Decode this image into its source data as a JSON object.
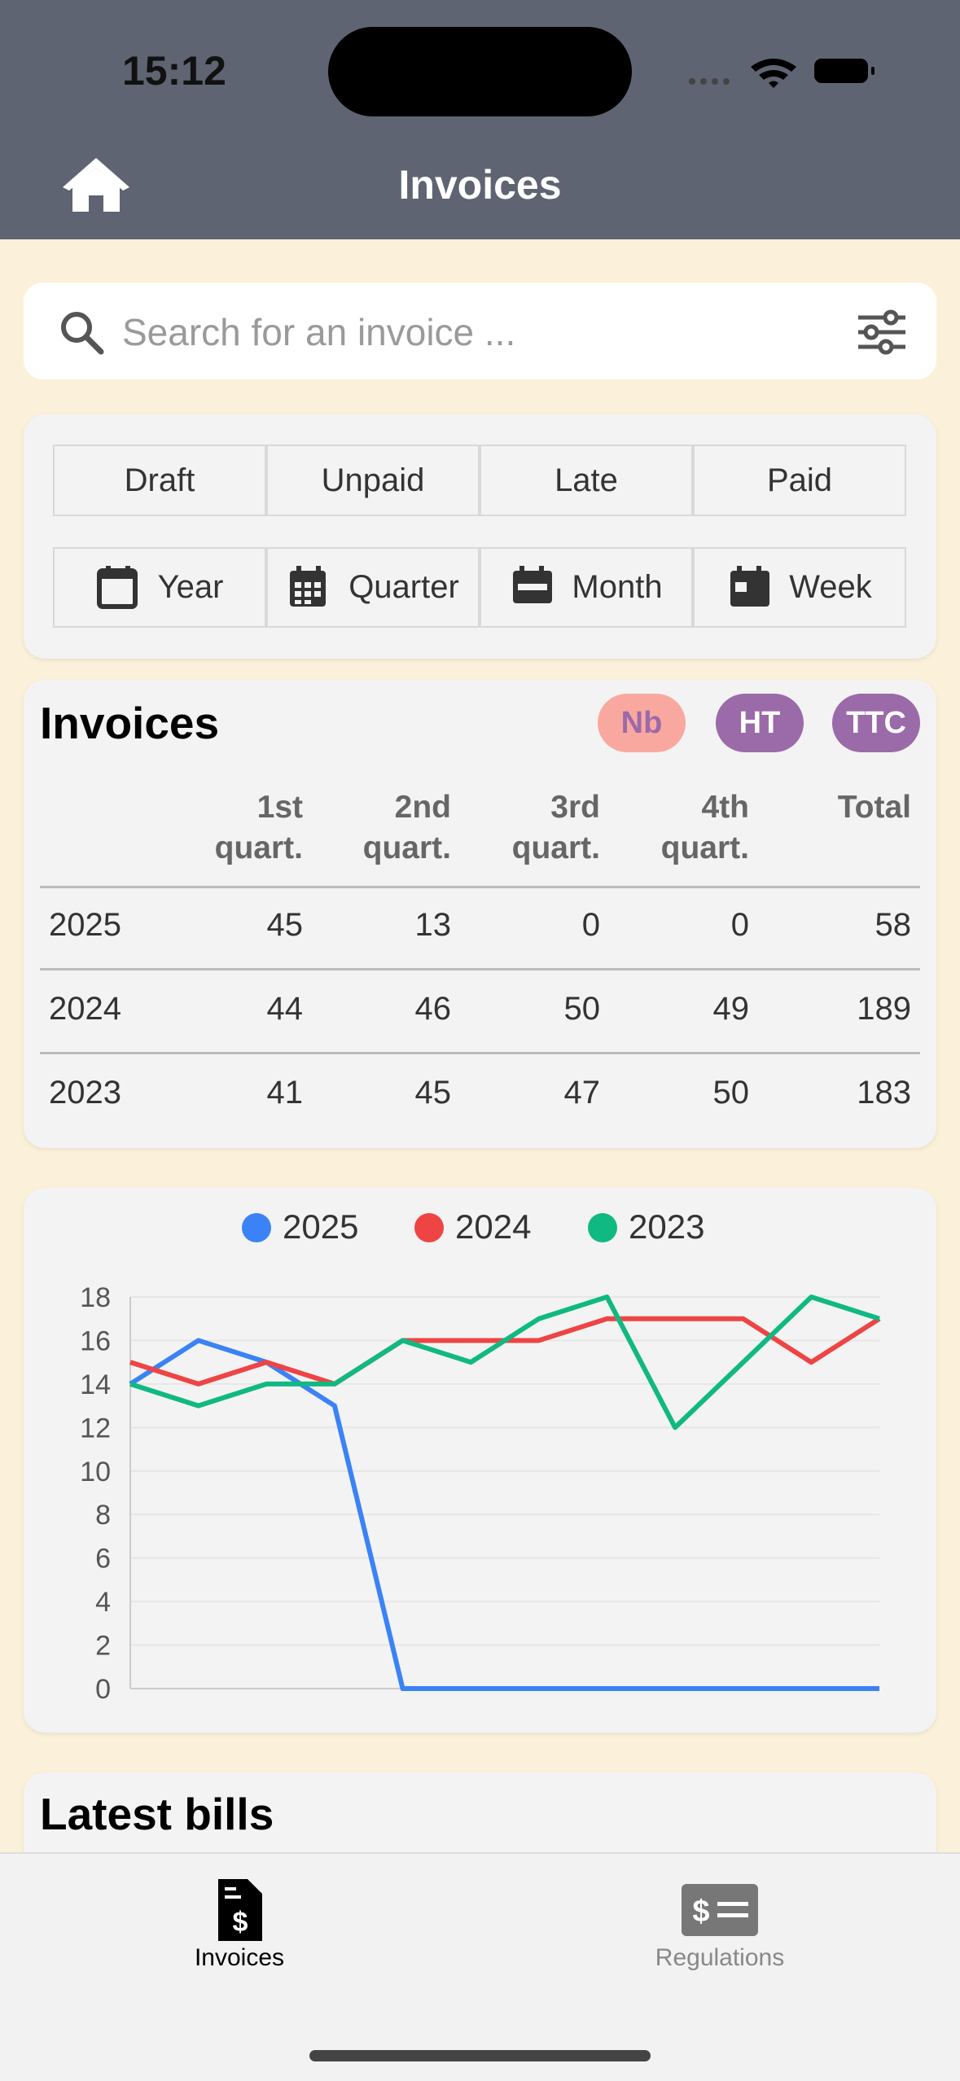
{
  "status_bar": {
    "time": "15:12"
  },
  "header": {
    "title": "Invoices"
  },
  "search": {
    "placeholder": "Search for an invoice ..."
  },
  "status_filters": [
    "Draft",
    "Unpaid",
    "Late",
    "Paid"
  ],
  "period_filters": [
    "Year",
    "Quarter",
    "Month",
    "Week"
  ],
  "invoices_card": {
    "title": "Invoices",
    "toggles": [
      "Nb",
      "HT",
      "TTC"
    ],
    "table": {
      "header": [
        "1st quart.",
        "2nd quart.",
        "3rd quart.",
        "4th quart.",
        "Total"
      ],
      "rows": [
        [
          "2025",
          45,
          13,
          0,
          0,
          58
        ],
        [
          "2024",
          44,
          46,
          50,
          49,
          189
        ],
        [
          "2023",
          41,
          45,
          47,
          50,
          183
        ]
      ]
    }
  },
  "chart_data": {
    "type": "line",
    "categories": [
      null,
      null,
      null,
      null,
      null,
      null,
      null,
      null,
      null,
      null,
      null,
      null
    ],
    "series": [
      {
        "name": "2025",
        "color": "#3b82f6",
        "values": [
          14,
          16,
          15,
          13,
          0,
          0,
          0,
          0,
          0,
          0,
          0,
          0
        ]
      },
      {
        "name": "2024",
        "color": "#ef4444",
        "values": [
          15,
          14,
          15,
          14,
          16,
          16,
          16,
          17,
          17,
          17,
          15,
          17
        ]
      },
      {
        "name": "2023",
        "color": "#10b981",
        "values": [
          14,
          13,
          14,
          14,
          16,
          15,
          17,
          18,
          12,
          15,
          18,
          17
        ]
      }
    ],
    "ylim": [
      0,
      18
    ],
    "yticks": [
      0,
      2,
      4,
      6,
      8,
      10,
      12,
      14,
      16,
      18
    ],
    "grid": true
  },
  "latest_bills": {
    "title": "Latest bills"
  },
  "tab_bar": [
    "Invoices",
    "Regulations"
  ]
}
